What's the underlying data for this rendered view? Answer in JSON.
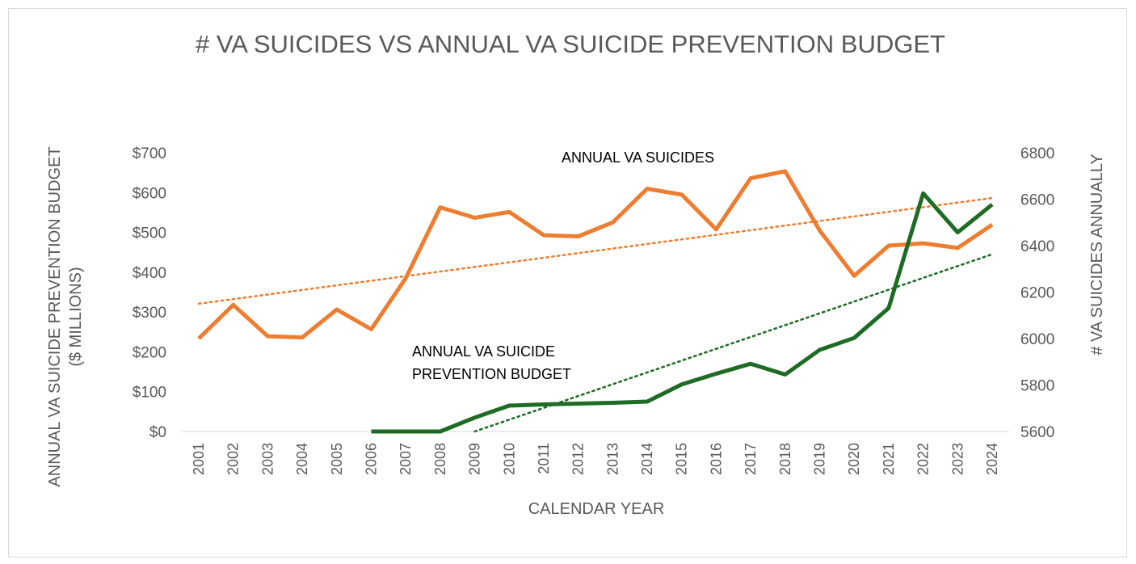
{
  "chart_data": {
    "type": "line",
    "title": "# VA SUICIDES VS ANNUAL VA SUICIDE PREVENTION BUDGET",
    "xlabel": "CALENDAR YEAR",
    "ylabel_left": [
      "ANNUAL VA SUICIDE PREVENTION BUDGET",
      "($ MILLIONS)"
    ],
    "ylabel_right": "# VA SUICIDES ANNUALLY",
    "categories": [
      "2001",
      "2002",
      "2003",
      "2004",
      "2005",
      "2006",
      "2007",
      "2008",
      "2009",
      "2010",
      "2011",
      "2012",
      "2013",
      "2014",
      "2015",
      "2016",
      "2017",
      "2018",
      "2019",
      "2020",
      "2021",
      "2022",
      "2023",
      "2024"
    ],
    "y_left": {
      "min": 0,
      "max": 700,
      "ticks": [
        0,
        100,
        200,
        300,
        400,
        500,
        600,
        700
      ],
      "tick_labels": [
        "$0",
        "$100",
        "$200",
        "$300",
        "$400",
        "$500",
        "$600",
        "$700"
      ]
    },
    "y_right": {
      "min": 5600,
      "max": 6800,
      "ticks": [
        5600,
        5800,
        6000,
        6200,
        6400,
        6600,
        6800
      ],
      "tick_labels": [
        "5600",
        "5800",
        "6000",
        "6200",
        "6400",
        "6600",
        "6800"
      ]
    },
    "grid": false,
    "legend": "none",
    "series": [
      {
        "name": "ANNUAL VA SUICIDES",
        "axis": "right",
        "color": "#ED7D31",
        "values": [
          6000,
          6145,
          6010,
          6005,
          6125,
          6040,
          6260,
          6565,
          6520,
          6545,
          6445,
          6440,
          6500,
          6645,
          6620,
          6470,
          6690,
          6720,
          6465,
          6270,
          6400,
          6410,
          6390,
          6490
        ],
        "trendline": {
          "style": "dotted",
          "start": 6150,
          "end": 6605
        }
      },
      {
        "name": "ANNUAL VA SUICIDE PREVENTION BUDGET",
        "axis": "left",
        "color": "#1E6B23",
        "values": [
          null,
          null,
          null,
          null,
          null,
          0,
          0,
          0,
          35,
          65,
          68,
          70,
          72,
          75,
          118,
          145,
          170,
          143,
          205,
          235,
          310,
          598,
          500,
          570
        ],
        "trendline": {
          "style": "dotted",
          "start_year": "2009",
          "start": 0,
          "end": 445
        }
      }
    ],
    "annotations": [
      {
        "text": "ANNUAL VA SUICIDES",
        "series": 0
      },
      {
        "text": "ANNUAL VA SUICIDE PREVENTION BUDGET",
        "series": 1,
        "lines": [
          "ANNUAL VA SUICIDE",
          "PREVENTION BUDGET"
        ]
      }
    ]
  }
}
